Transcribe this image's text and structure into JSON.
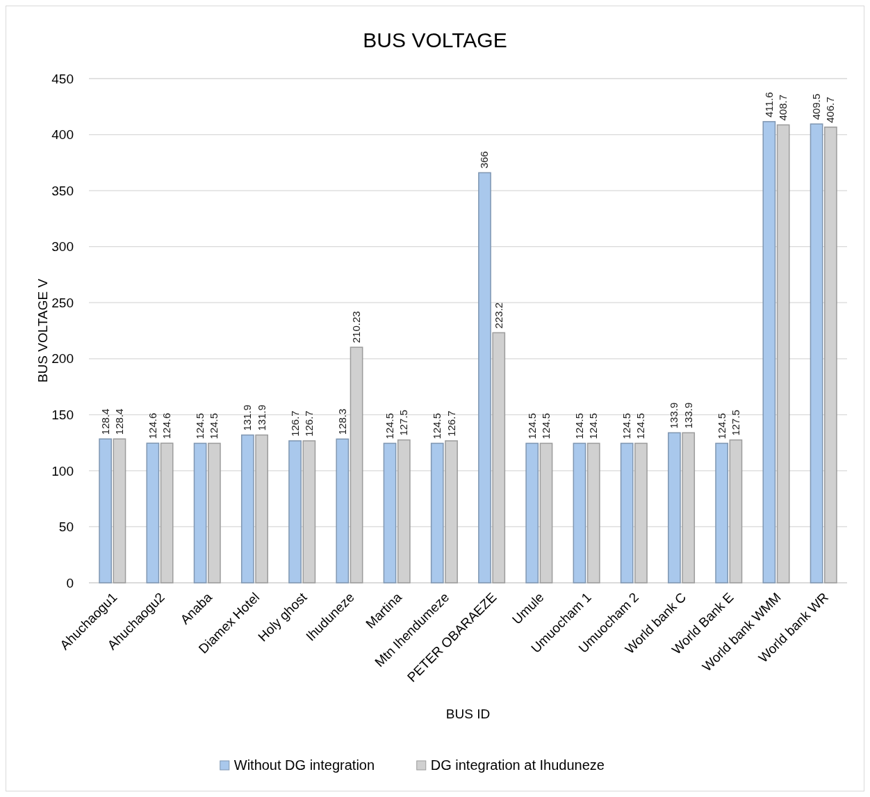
{
  "chart_data": {
    "type": "bar",
    "title": "BUS VOLTAGE",
    "xlabel": "BUS ID",
    "ylabel": "BUS VOLTAGE V",
    "categories": [
      "Ahuchaogu1",
      "Ahuchaogu2",
      "Anaba",
      "Diamex Hotel",
      "Holy ghost",
      "Ihuduneze",
      "Martina",
      "Mtn Ihendumeze",
      "PETER OBARAEZE",
      "Umule",
      "Umuocham 1",
      "Umuocham 2",
      "World bank C",
      "World Bank E",
      "World bank WMM",
      "World bank WR"
    ],
    "series": [
      {
        "name": "Without DG integration",
        "color": "#a9c8ec",
        "values": [
          128.4,
          124.6,
          124.5,
          131.9,
          126.7,
          128.3,
          124.5,
          124.5,
          366,
          124.5,
          124.5,
          124.5,
          133.9,
          124.5,
          411.6,
          409.5
        ]
      },
      {
        "name": "DG integration at Ihuduneze",
        "color": "#d0d0d0",
        "values": [
          128.4,
          124.6,
          124.5,
          131.9,
          126.7,
          210.23,
          127.5,
          126.7,
          223.2,
          124.5,
          124.5,
          124.5,
          133.9,
          127.5,
          408.7,
          406.7
        ]
      }
    ],
    "ylim": [
      0,
      450
    ],
    "yticks": [
      0,
      50,
      100,
      150,
      200,
      250,
      300,
      350,
      400,
      450
    ],
    "grid": "y",
    "legend": "bottom",
    "data_labels": true
  }
}
